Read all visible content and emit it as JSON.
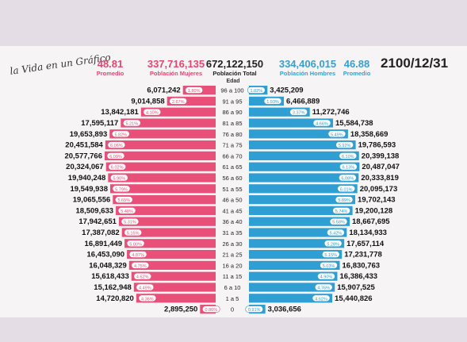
{
  "brand": "la Vida en un Gráfico",
  "header": {
    "avg_women": "48.81",
    "avg_women_label": "Promedio",
    "pop_women": "337,716,135",
    "pop_women_label": "Población Mujeres",
    "pop_total": "672,122,150",
    "pop_total_label": "Población Total",
    "pop_men": "334,406,015",
    "pop_men_label": "Población Hombres",
    "avg_men": "46.88",
    "avg_men_label": "Promedio",
    "date": "2100/12/31"
  },
  "colors": {
    "women": "#e8507a",
    "men": "#2f9fd3"
  },
  "chart_data": {
    "type": "bar",
    "subtype": "population-pyramid",
    "age_axis_label": "Edad",
    "categories": [
      "96 a 100",
      "91 a 95",
      "86 a 90",
      "81 a 85",
      "76 a 80",
      "71 a 75",
      "66 a 70",
      "61 a 65",
      "56 a 60",
      "51 a 55",
      "46 a 50",
      "41 a 45",
      "36 a 40",
      "31 a 35",
      "26 a 30",
      "21 a 25",
      "16 a 20",
      "11 a 15",
      "6 a 10",
      "1 a 5",
      "0"
    ],
    "series": [
      {
        "name": "Población Mujeres",
        "values": [
          6071242,
          9014858,
          13842181,
          17595117,
          19653893,
          20451584,
          20577766,
          20324067,
          19940248,
          19549938,
          19065556,
          18509633,
          17942651,
          17387082,
          16891449,
          16453090,
          16048329,
          15618433,
          15162948,
          14720820,
          2895250
        ],
        "labels": [
          "6,071,242",
          "9,014,858",
          "13,842,181",
          "17,595,117",
          "19,653,893",
          "20,451,584",
          "20,577,766",
          "20,324,067",
          "19,940,248",
          "19,549,938",
          "19,065,556",
          "18,509,633",
          "17,942,651",
          "17,387,082",
          "16,891,449",
          "16,453,090",
          "16,048,329",
          "15,618,433",
          "15,162,948",
          "14,720,820",
          "2,895,250"
        ],
        "percents": [
          "1.80%",
          "2.67%",
          "4.10%",
          "5.21%",
          "5.82%",
          "6.06%",
          "6.09%",
          "6.02%",
          "5.90%",
          "5.79%",
          "5.65%",
          "5.48%",
          "5.31%",
          "5.15%",
          "5.00%",
          "4.87%",
          "4.75%",
          "4.62%",
          "4.49%",
          "4.36%",
          "0.86%"
        ]
      },
      {
        "name": "Población Hombres",
        "values": [
          3425209,
          6466889,
          11272746,
          15584738,
          18358669,
          19786593,
          20399138,
          20487047,
          20333819,
          20095173,
          19702143,
          19200128,
          18667695,
          18134933,
          17657114,
          17231778,
          16830763,
          16386433,
          15907525,
          15440826,
          3036656
        ],
        "labels": [
          "3,425,209",
          "6,466,889",
          "11,272,746",
          "15,584,738",
          "18,358,669",
          "19,786,593",
          "20,399,138",
          "20,487,047",
          "20,333,819",
          "20,095,173",
          "19,702,143",
          "19,200,128",
          "18,667,695",
          "18,134,933",
          "17,657,114",
          "17,231,778",
          "16,830,763",
          "16,386,433",
          "15,907,525",
          "15,440,826",
          "3,036,656"
        ],
        "percents": [
          "1.02%",
          "1.93%",
          "3.37%",
          "4.66%",
          "5.49%",
          "5.92%",
          "6.10%",
          "6.13%",
          "6.08%",
          "6.01%",
          "5.89%",
          "5.74%",
          "5.58%",
          "5.42%",
          "5.28%",
          "5.15%",
          "5.03%",
          "4.90%",
          "4.76%",
          "4.62%",
          "0.91%"
        ]
      }
    ]
  }
}
